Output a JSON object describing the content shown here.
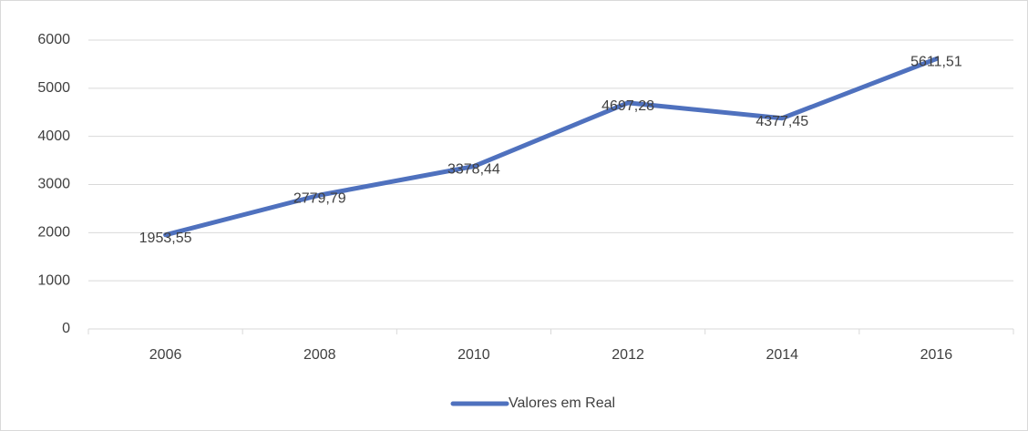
{
  "chart_data": {
    "type": "line",
    "categories": [
      "2006",
      "2008",
      "2010",
      "2012",
      "2014",
      "2016"
    ],
    "series": [
      {
        "name": "Valores em Real",
        "color": "#4f71be",
        "values": [
          1953.55,
          2779.79,
          3378.44,
          4697.28,
          4377.45,
          5611.51
        ],
        "value_labels": [
          "1953,55",
          "2779,79",
          "3378,44",
          "4697,28",
          "4377,45",
          "5611,51"
        ]
      }
    ],
    "ylim": [
      0,
      6000
    ],
    "yticks": [
      0,
      1000,
      2000,
      3000,
      4000,
      5000,
      6000
    ],
    "grid": true,
    "legend": "bottom"
  }
}
